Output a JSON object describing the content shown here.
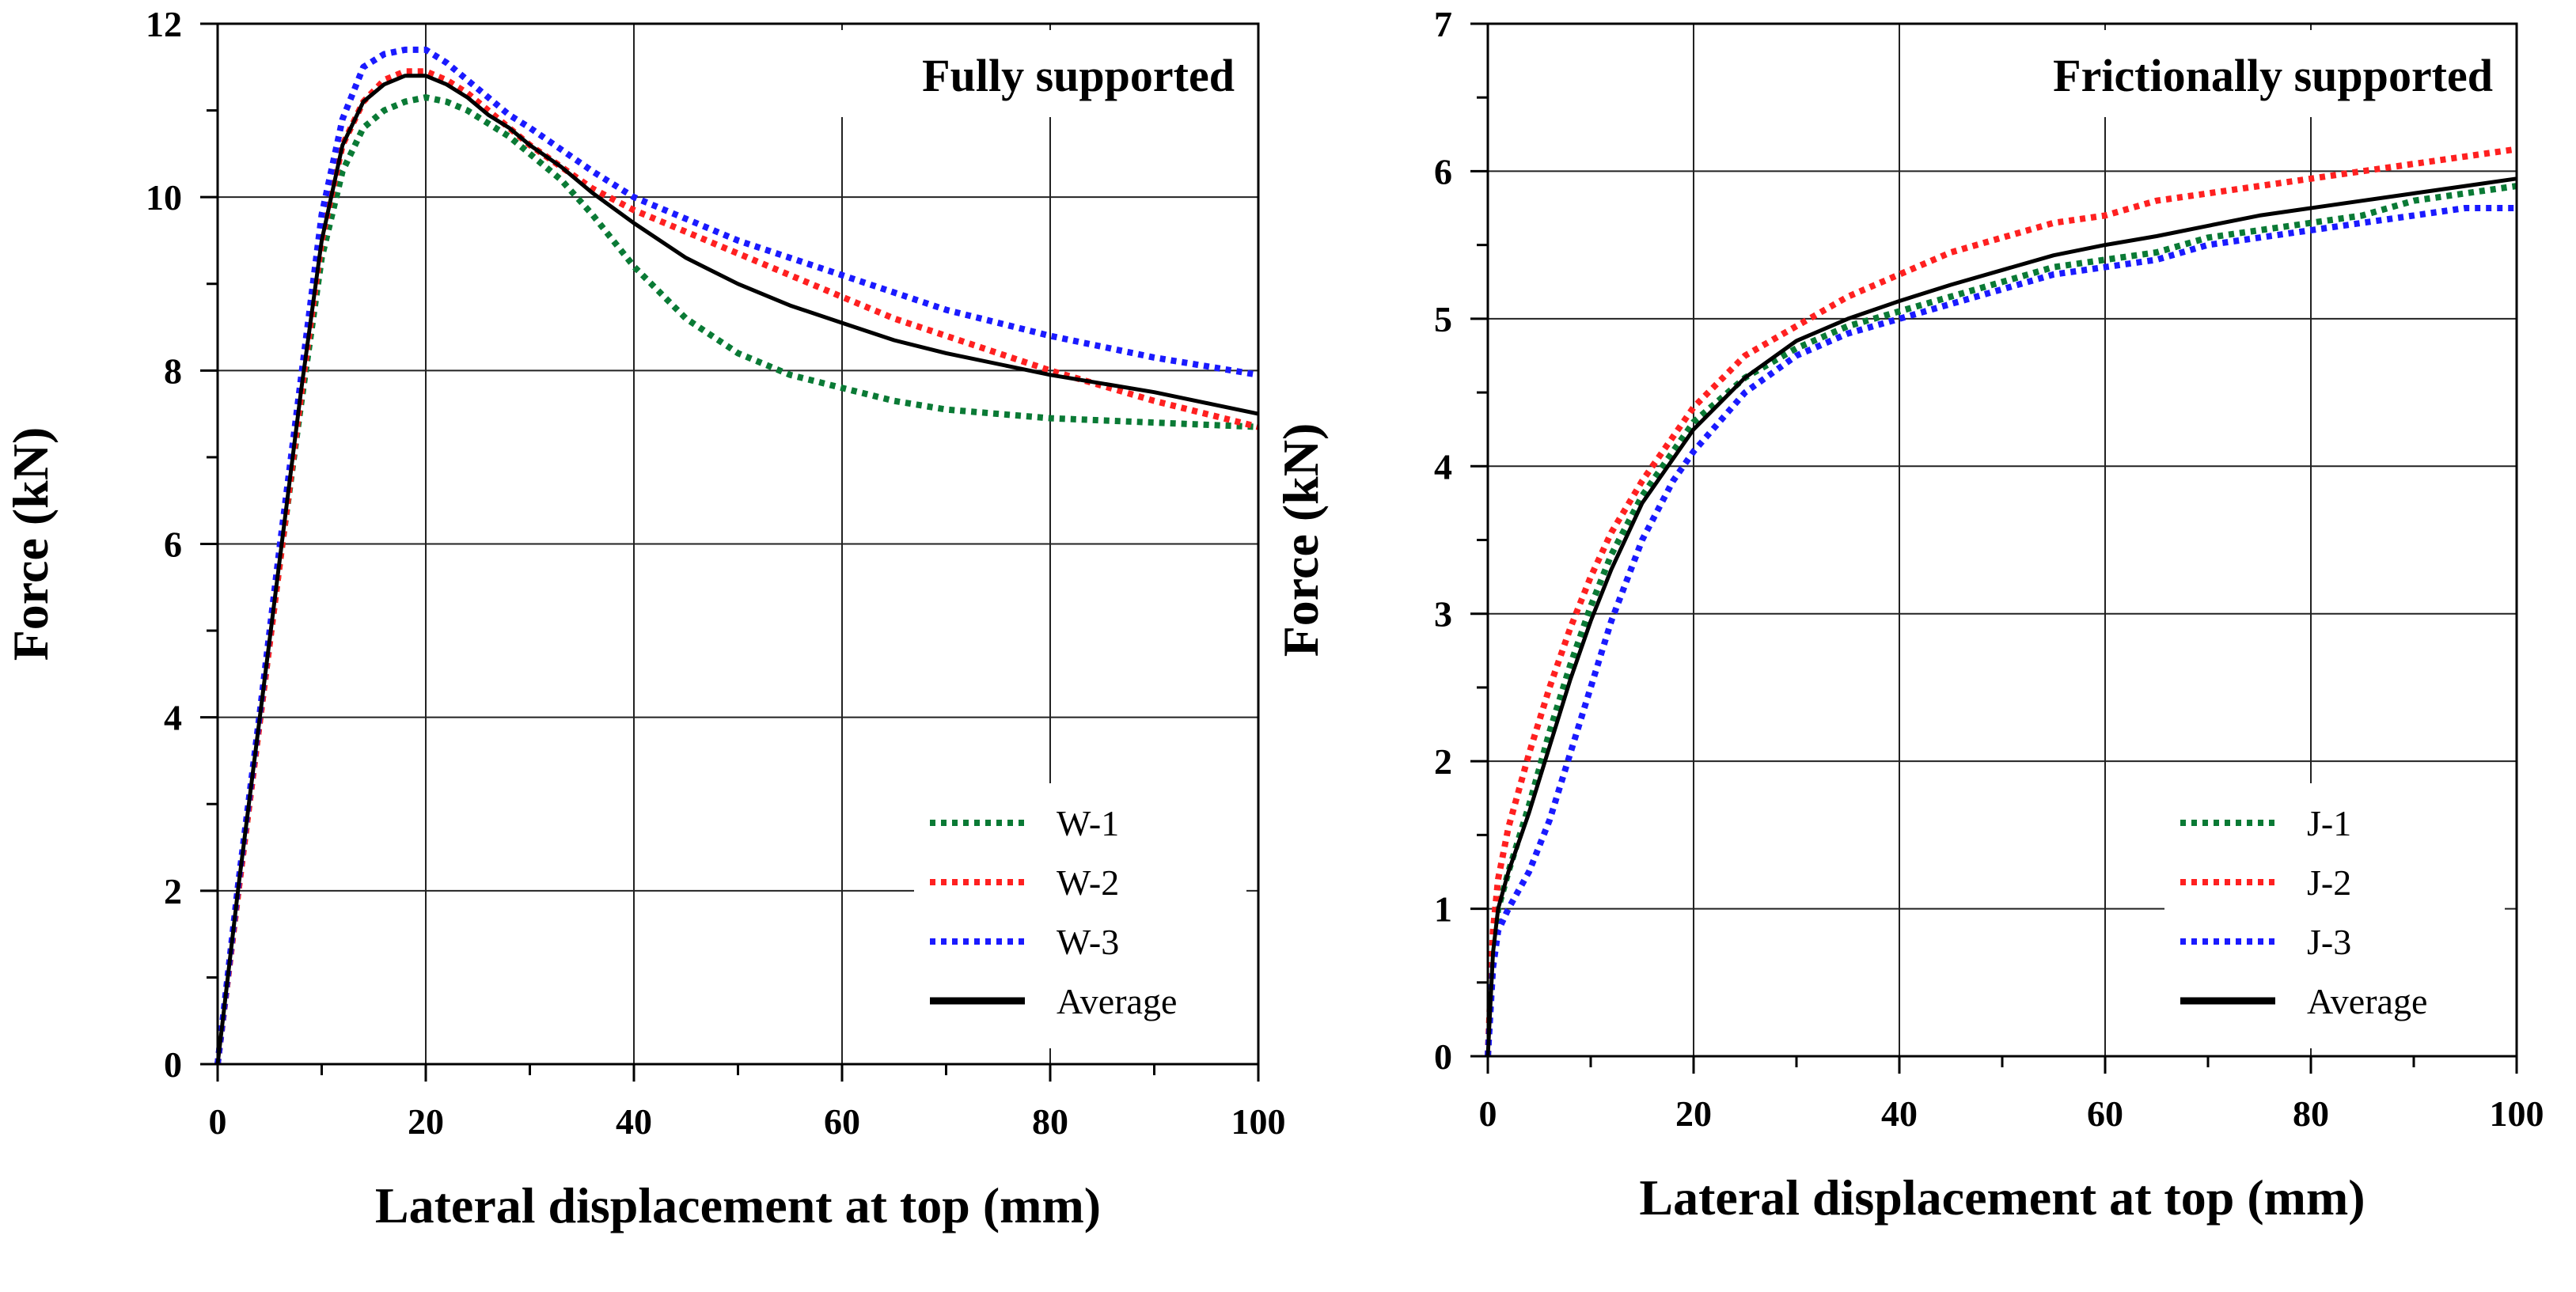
{
  "chart_data": [
    {
      "type": "line",
      "annotation": "Fully supported",
      "xlabel": "Lateral displacement at top (mm)",
      "ylabel": "Force (kN)",
      "xlim": [
        0,
        100
      ],
      "ylim": [
        0,
        12
      ],
      "xticks": [
        0,
        20,
        40,
        60,
        80,
        100
      ],
      "yticks": [
        0,
        2,
        4,
        6,
        8,
        10,
        12
      ],
      "grid": true,
      "legend_position": "bottom-right",
      "series": [
        {
          "name": "W-1",
          "color": "#0a7a35",
          "style": "dotted",
          "x": [
            0,
            2,
            4,
            6,
            8,
            10,
            12,
            14,
            16,
            18,
            20,
            22,
            24,
            26,
            28,
            30,
            33,
            36,
            40,
            45,
            50,
            55,
            60,
            65,
            70,
            80,
            90,
            100
          ],
          "y": [
            0,
            2.0,
            3.9,
            5.8,
            7.6,
            9.3,
            10.3,
            10.8,
            11.0,
            11.1,
            11.15,
            11.1,
            11.0,
            10.85,
            10.7,
            10.5,
            10.2,
            9.8,
            9.2,
            8.6,
            8.2,
            7.95,
            7.8,
            7.65,
            7.55,
            7.45,
            7.4,
            7.35
          ]
        },
        {
          "name": "W-2",
          "color": "#ff2020",
          "style": "dotted",
          "x": [
            0,
            2,
            4,
            6,
            8,
            10,
            12,
            14,
            16,
            18,
            20,
            22,
            24,
            26,
            28,
            30,
            33,
            36,
            40,
            45,
            50,
            55,
            60,
            65,
            70,
            80,
            90,
            100
          ],
          "y": [
            0,
            2.0,
            3.9,
            5.8,
            7.7,
            9.5,
            10.6,
            11.1,
            11.35,
            11.45,
            11.45,
            11.35,
            11.2,
            11.0,
            10.8,
            10.6,
            10.35,
            10.1,
            9.85,
            9.6,
            9.35,
            9.1,
            8.85,
            8.6,
            8.4,
            8.0,
            7.65,
            7.35
          ]
        },
        {
          "name": "W-3",
          "color": "#1a1aff",
          "style": "dotted",
          "x": [
            0,
            2,
            4,
            6,
            8,
            10,
            12,
            14,
            16,
            18,
            20,
            22,
            24,
            26,
            28,
            30,
            33,
            36,
            40,
            45,
            50,
            55,
            60,
            65,
            70,
            80,
            90,
            100
          ],
          "y": [
            0,
            2.1,
            4.0,
            6.0,
            7.9,
            9.8,
            10.9,
            11.5,
            11.65,
            11.7,
            11.7,
            11.55,
            11.35,
            11.15,
            10.95,
            10.8,
            10.55,
            10.3,
            10.0,
            9.75,
            9.5,
            9.3,
            9.1,
            8.9,
            8.7,
            8.4,
            8.15,
            7.95
          ]
        },
        {
          "name": "Average",
          "color": "#000000",
          "style": "solid",
          "x": [
            0,
            2,
            4,
            6,
            8,
            10,
            12,
            14,
            16,
            18,
            20,
            22,
            24,
            26,
            28,
            30,
            33,
            36,
            40,
            45,
            50,
            55,
            60,
            65,
            70,
            80,
            90,
            100
          ],
          "y": [
            0,
            2.05,
            3.95,
            5.85,
            7.75,
            9.5,
            10.6,
            11.1,
            11.3,
            11.4,
            11.4,
            11.3,
            11.15,
            10.95,
            10.8,
            10.6,
            10.35,
            10.05,
            9.7,
            9.3,
            9.0,
            8.75,
            8.55,
            8.35,
            8.2,
            7.95,
            7.75,
            7.5
          ]
        }
      ]
    },
    {
      "type": "line",
      "annotation": "Frictionally supported",
      "xlabel": "Lateral displacement at top (mm)",
      "ylabel": "Force (kN)",
      "xlim": [
        0,
        100
      ],
      "ylim": [
        0,
        7
      ],
      "xticks": [
        0,
        20,
        40,
        60,
        80,
        100
      ],
      "yticks": [
        0,
        1,
        2,
        3,
        4,
        5,
        6,
        7
      ],
      "grid": true,
      "legend_position": "bottom-right",
      "series": [
        {
          "name": "J-1",
          "color": "#0a7a35",
          "style": "dotted",
          "x": [
            0,
            0.5,
            1,
            2,
            4,
            6,
            8,
            10,
            12,
            15,
            18,
            20,
            25,
            30,
            35,
            40,
            45,
            50,
            55,
            60,
            65,
            70,
            75,
            80,
            85,
            90,
            95,
            100
          ],
          "y": [
            0,
            0.7,
            1.0,
            1.25,
            1.7,
            2.2,
            2.65,
            3.05,
            3.4,
            3.8,
            4.1,
            4.3,
            4.6,
            4.8,
            4.95,
            5.05,
            5.15,
            5.25,
            5.35,
            5.4,
            5.45,
            5.55,
            5.6,
            5.65,
            5.7,
            5.8,
            5.85,
            5.9
          ]
        },
        {
          "name": "J-2",
          "color": "#ff2020",
          "style": "dotted",
          "x": [
            0,
            0.5,
            1,
            2,
            4,
            6,
            8,
            10,
            12,
            15,
            18,
            20,
            25,
            30,
            35,
            40,
            45,
            50,
            55,
            60,
            65,
            70,
            75,
            80,
            85,
            90,
            95,
            100
          ],
          "y": [
            0,
            0.85,
            1.2,
            1.55,
            2.05,
            2.5,
            2.9,
            3.25,
            3.55,
            3.9,
            4.2,
            4.4,
            4.75,
            4.95,
            5.15,
            5.3,
            5.45,
            5.55,
            5.65,
            5.7,
            5.8,
            5.85,
            5.9,
            5.95,
            6.0,
            6.05,
            6.1,
            6.15
          ]
        },
        {
          "name": "J-3",
          "color": "#1a1aff",
          "style": "dotted",
          "x": [
            0,
            0.5,
            1,
            2,
            4,
            6,
            8,
            10,
            12,
            15,
            18,
            20,
            25,
            30,
            35,
            40,
            45,
            50,
            55,
            60,
            65,
            70,
            75,
            80,
            85,
            90,
            95,
            100
          ],
          "y": [
            0,
            0.6,
            0.85,
            1.0,
            1.25,
            1.6,
            2.05,
            2.5,
            2.95,
            3.5,
            3.9,
            4.1,
            4.5,
            4.75,
            4.9,
            5.0,
            5.1,
            5.2,
            5.3,
            5.35,
            5.4,
            5.5,
            5.55,
            5.6,
            5.65,
            5.7,
            5.75,
            5.75
          ]
        },
        {
          "name": "Average",
          "color": "#000000",
          "style": "solid",
          "x": [
            0,
            0.5,
            1,
            2,
            4,
            6,
            8,
            10,
            12,
            15,
            18,
            20,
            25,
            30,
            35,
            40,
            45,
            50,
            55,
            60,
            65,
            70,
            75,
            80,
            85,
            90,
            95,
            100
          ],
          "y": [
            0,
            0.7,
            1.0,
            1.25,
            1.65,
            2.1,
            2.55,
            2.95,
            3.3,
            3.75,
            4.05,
            4.25,
            4.6,
            4.85,
            5.0,
            5.12,
            5.23,
            5.33,
            5.43,
            5.5,
            5.56,
            5.63,
            5.7,
            5.75,
            5.8,
            5.85,
            5.9,
            5.95
          ]
        }
      ]
    }
  ]
}
